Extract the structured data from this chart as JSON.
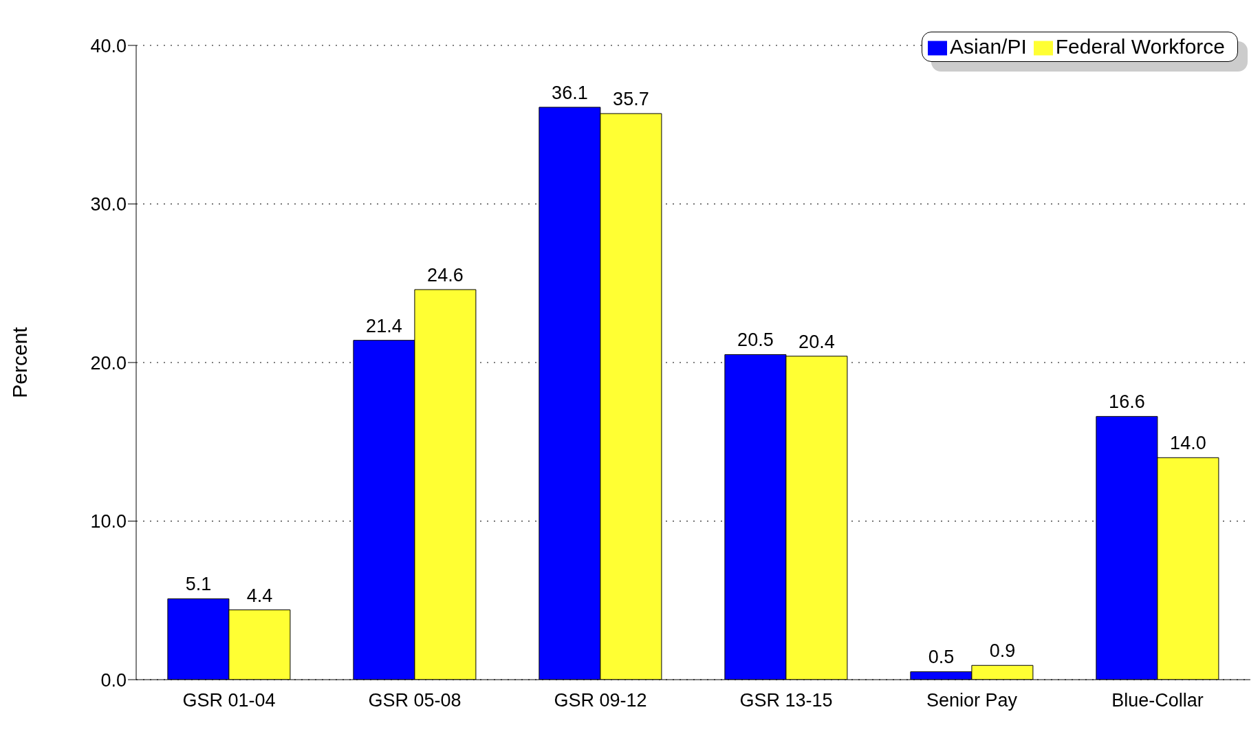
{
  "chart_data": {
    "type": "bar",
    "ylabel": "Percent",
    "categories": [
      "GSR 01-04",
      "GSR 05-08",
      "GSR 09-12",
      "GSR 13-15",
      "Senior Pay",
      "Blue-Collar"
    ],
    "series": [
      {
        "name": "Asian/PI",
        "color": "#0000ff",
        "values": [
          5.1,
          21.4,
          36.1,
          20.5,
          0.5,
          16.6
        ]
      },
      {
        "name": "Federal Workforce",
        "color": "#ffff33",
        "values": [
          4.4,
          24.6,
          35.7,
          20.4,
          0.9,
          14.0
        ]
      }
    ],
    "value_labels": [
      [
        "5.1",
        "21.4",
        "36.1",
        "20.5",
        "0.5",
        "16.6"
      ],
      [
        "4.4",
        "24.6",
        "35.7",
        "20.4",
        "0.9",
        "14.0"
      ]
    ],
    "ylim": [
      0,
      40
    ],
    "yticks": [
      {
        "value": 0,
        "label": "0.0"
      },
      {
        "value": 10,
        "label": "10.0"
      },
      {
        "value": 20,
        "label": "20.0"
      },
      {
        "value": 30,
        "label": "30.0"
      },
      {
        "value": 40,
        "label": "40.0"
      }
    ],
    "grid": "y",
    "legend": "top right"
  }
}
